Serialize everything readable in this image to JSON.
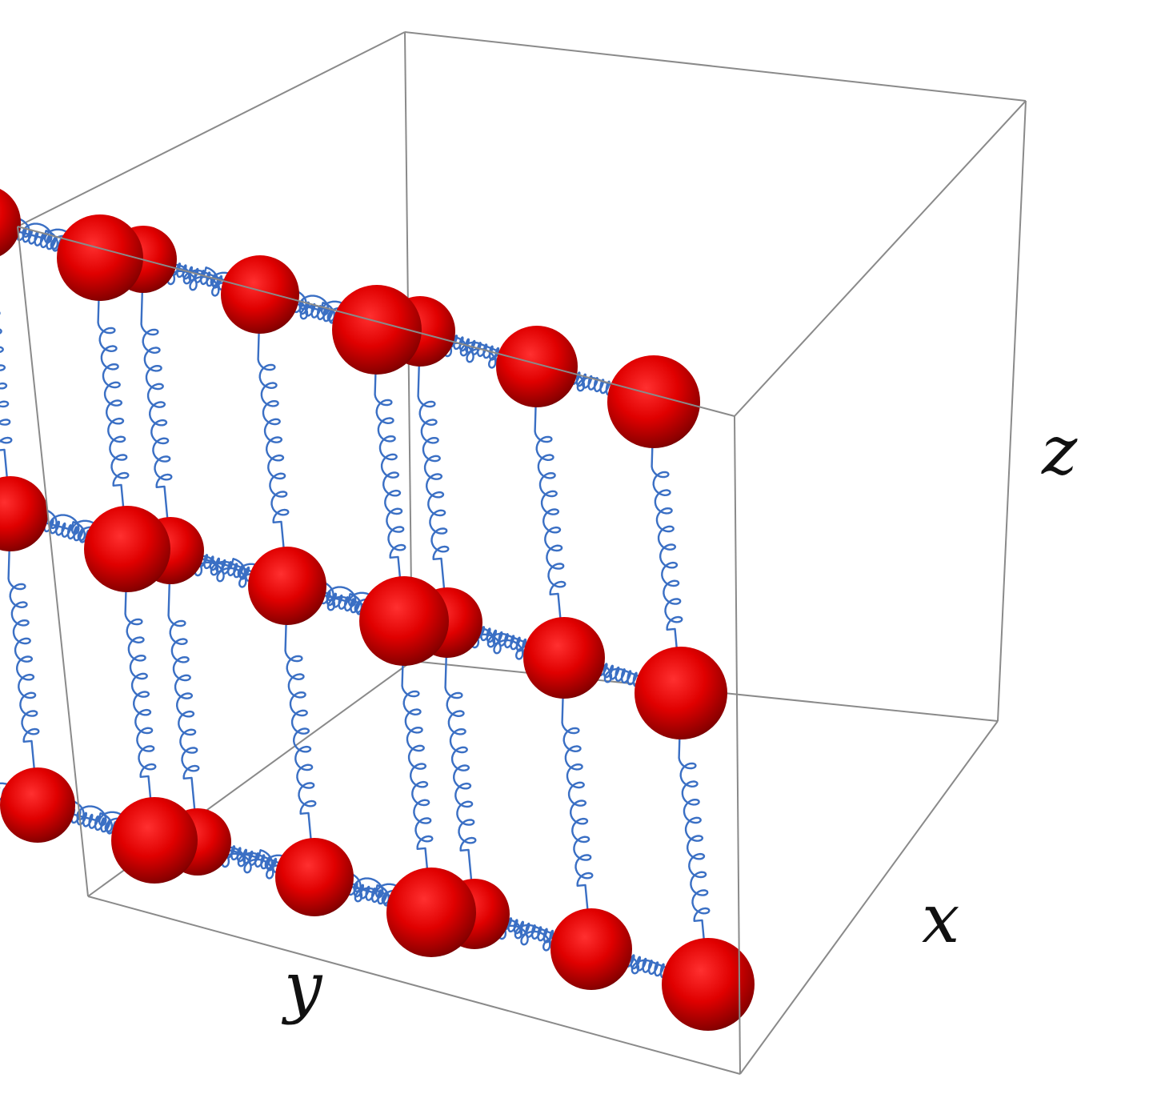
{
  "figure": {
    "description_free": true,
    "lattice": {
      "nodes_per_axis": 3,
      "node_color": "#e00000",
      "node_shadow_color": "#5a0000",
      "spring_color": "#3a6fc4",
      "box_color": "#8a8a8a"
    },
    "axis_labels": {
      "x": "x",
      "y": "y",
      "z": "z"
    }
  }
}
